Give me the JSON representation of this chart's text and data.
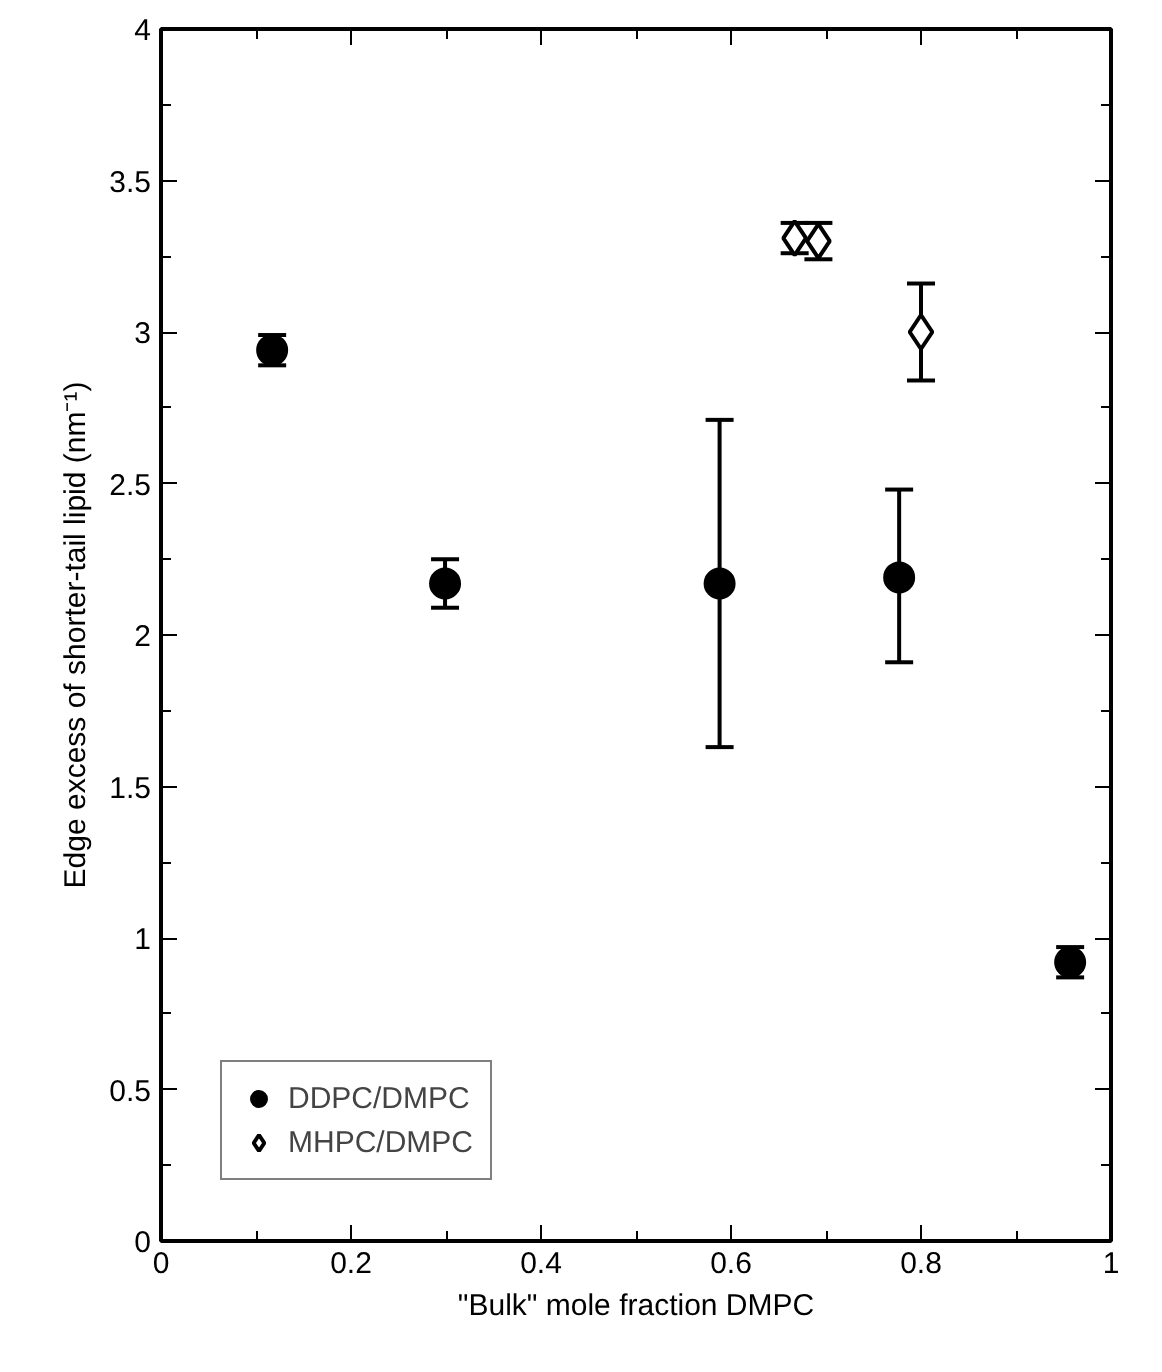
{
  "chart_data": {
    "type": "scatter",
    "xlabel": "\"Bulk\" mole fraction DMPC",
    "ylabel": "Edge excess of shorter-tail lipid (nm⁻¹)",
    "xlim": [
      0,
      1
    ],
    "ylim": [
      0,
      4
    ],
    "xticks": [
      0,
      0.2,
      0.4,
      0.6,
      0.8,
      1
    ],
    "yticks": [
      0,
      0.5,
      1,
      1.5,
      2,
      2.5,
      3,
      3.5,
      4
    ],
    "grid": false,
    "legend": "bottom left",
    "series": [
      {
        "name": "DDPC/DMPC",
        "color": "#000000",
        "marker": "circle",
        "x": [
          0.117,
          0.299,
          0.588,
          0.777,
          0.957
        ],
        "values": [
          2.94,
          2.17,
          2.17,
          2.19,
          0.92
        ],
        "errors": [
          0.05,
          0.08,
          [
            1.63,
            2.71
          ],
          [
            1.91,
            2.48
          ],
          0.05
        ]
      },
      {
        "name": "MHPC/DMPC",
        "color": "#000000",
        "marker": "diamond",
        "x": [
          0.667,
          0.692,
          0.8
        ],
        "values": [
          3.31,
          3.3,
          3.0
        ],
        "errors": [
          0.05,
          0.06,
          [
            2.84,
            3.16
          ]
        ]
      }
    ]
  }
}
